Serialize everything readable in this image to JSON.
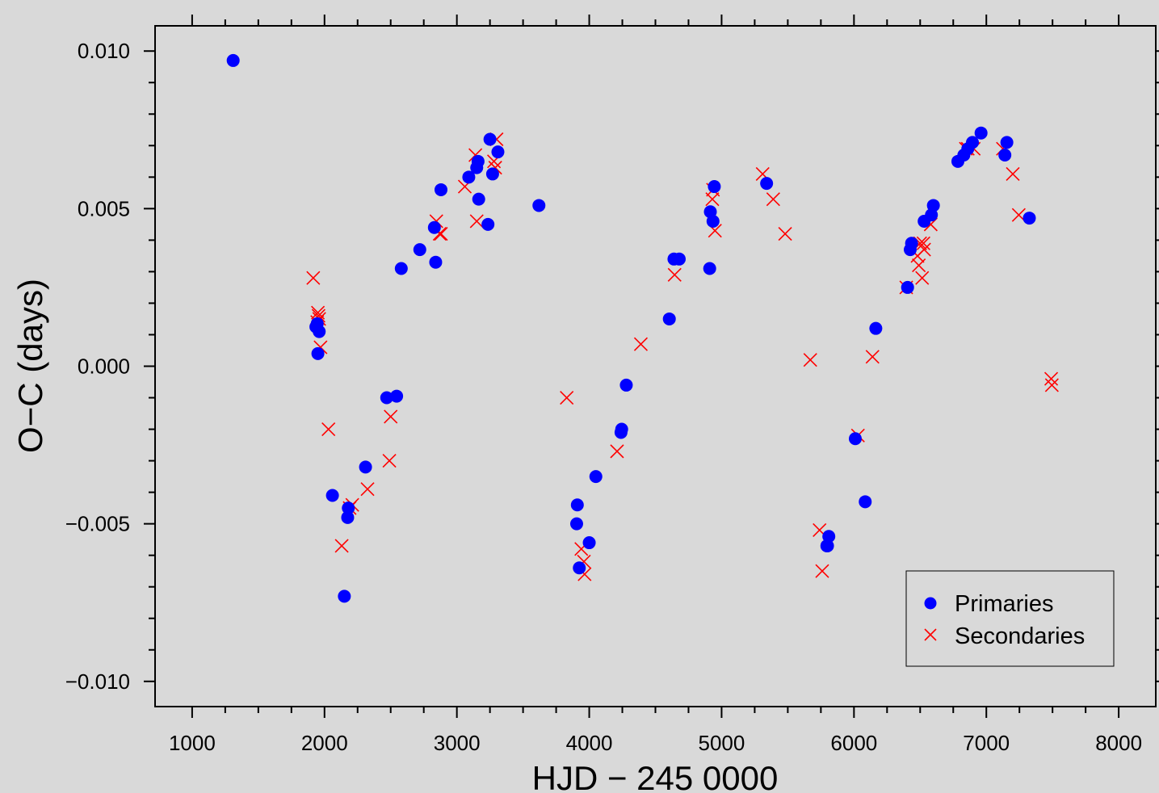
{
  "chart_data": {
    "type": "scatter",
    "xlabel": "HJD − 245 0000",
    "ylabel": "O−C (days)",
    "xlim": [
      720,
      8280
    ],
    "ylim": [
      -0.0108,
      0.0108
    ],
    "x_ticks": [
      1000,
      2000,
      3000,
      4000,
      5000,
      6000,
      7000,
      8000
    ],
    "x_tick_labels": [
      "1000",
      "2000",
      "3000",
      "4000",
      "5000",
      "6000",
      "7000",
      "8000"
    ],
    "y_ticks": [
      0.01,
      0.005,
      0.0,
      -0.005,
      -0.01
    ],
    "y_tick_labels": [
      "0.010",
      "0.005",
      "0.000",
      "−0.005",
      "−0.010"
    ],
    "grid": false,
    "legend_position": "bottom-right",
    "colors": {
      "primaries": "#0000ff",
      "secondaries": "#ff0000",
      "background": "#d9d9d9"
    },
    "series": [
      {
        "name": "Primaries",
        "marker": "circle",
        "points": [
          [
            1310,
            0.0097
          ],
          [
            1935,
            0.00125
          ],
          [
            1945,
            0.00135
          ],
          [
            1950,
            0.0004
          ],
          [
            1960,
            0.0011
          ],
          [
            2060,
            -0.0041
          ],
          [
            2150,
            -0.0073
          ],
          [
            2175,
            -0.0048
          ],
          [
            2180,
            -0.0045
          ],
          [
            2310,
            -0.0032
          ],
          [
            2470,
            -0.001
          ],
          [
            2545,
            -0.00095
          ],
          [
            2580,
            0.0031
          ],
          [
            2720,
            0.0037
          ],
          [
            2830,
            0.0044
          ],
          [
            2840,
            0.0033
          ],
          [
            2880,
            0.0056
          ],
          [
            3090,
            0.006
          ],
          [
            3150,
            0.0063
          ],
          [
            3160,
            0.0065
          ],
          [
            3165,
            0.0053
          ],
          [
            3235,
            0.0045
          ],
          [
            3250,
            0.0072
          ],
          [
            3270,
            0.0061
          ],
          [
            3310,
            0.0068
          ],
          [
            3620,
            0.0051
          ],
          [
            3905,
            -0.005
          ],
          [
            3910,
            -0.0044
          ],
          [
            3925,
            -0.0064
          ],
          [
            4000,
            -0.0056
          ],
          [
            4050,
            -0.0035
          ],
          [
            4240,
            -0.0021
          ],
          [
            4245,
            -0.002
          ],
          [
            4280,
            -0.0006
          ],
          [
            4605,
            0.0015
          ],
          [
            4640,
            0.0034
          ],
          [
            4680,
            0.0034
          ],
          [
            4910,
            0.0031
          ],
          [
            4915,
            0.0049
          ],
          [
            4935,
            0.0046
          ],
          [
            4945,
            0.0057
          ],
          [
            5340,
            0.0058
          ],
          [
            5795,
            -0.0057
          ],
          [
            5800,
            -0.0057
          ],
          [
            5810,
            -0.0054
          ],
          [
            6010,
            -0.0023
          ],
          [
            6085,
            -0.0043
          ],
          [
            6165,
            0.0012
          ],
          [
            6405,
            0.0025
          ],
          [
            6425,
            0.0037
          ],
          [
            6435,
            0.0039
          ],
          [
            6530,
            0.0046
          ],
          [
            6585,
            0.0048
          ],
          [
            6600,
            0.0051
          ],
          [
            6785,
            0.0065
          ],
          [
            6830,
            0.0067
          ],
          [
            6860,
            0.0069
          ],
          [
            6895,
            0.0071
          ],
          [
            6960,
            0.0074
          ],
          [
            7140,
            0.0067
          ],
          [
            7155,
            0.0071
          ],
          [
            7325,
            0.0047
          ]
        ]
      },
      {
        "name": "Secondaries",
        "marker": "cross",
        "points": [
          [
            1915,
            0.0028
          ],
          [
            1945,
            0.0014
          ],
          [
            1950,
            0.0017
          ],
          [
            1955,
            0.0016
          ],
          [
            1960,
            0.0015
          ],
          [
            1970,
            0.0006
          ],
          [
            2030,
            -0.002
          ],
          [
            2130,
            -0.0057
          ],
          [
            2190,
            -0.0045
          ],
          [
            2210,
            -0.0044
          ],
          [
            2325,
            -0.0039
          ],
          [
            2490,
            -0.003
          ],
          [
            2500,
            -0.0016
          ],
          [
            2845,
            0.0046
          ],
          [
            2870,
            0.0042
          ],
          [
            2880,
            0.0042
          ],
          [
            3060,
            0.0057
          ],
          [
            3140,
            0.0067
          ],
          [
            3150,
            0.0046
          ],
          [
            3280,
            0.0065
          ],
          [
            3290,
            0.0063
          ],
          [
            3300,
            0.0072
          ],
          [
            3830,
            -0.001
          ],
          [
            3940,
            -0.0058
          ],
          [
            3960,
            -0.0062
          ],
          [
            3965,
            -0.0066
          ],
          [
            4210,
            -0.0027
          ],
          [
            4390,
            0.0007
          ],
          [
            4645,
            0.0029
          ],
          [
            4930,
            0.0053
          ],
          [
            4935,
            0.0056
          ],
          [
            4950,
            0.0043
          ],
          [
            5310,
            0.0061
          ],
          [
            5390,
            0.0053
          ],
          [
            5480,
            0.0042
          ],
          [
            5670,
            0.0002
          ],
          [
            5740,
            -0.0052
          ],
          [
            5760,
            -0.0065
          ],
          [
            6030,
            -0.0022
          ],
          [
            6140,
            0.0003
          ],
          [
            6395,
            0.0025
          ],
          [
            6480,
            0.0035
          ],
          [
            6490,
            0.0032
          ],
          [
            6500,
            0.0039
          ],
          [
            6515,
            0.0028
          ],
          [
            6525,
            0.0039
          ],
          [
            6530,
            0.0037
          ],
          [
            6580,
            0.0045
          ],
          [
            6845,
            0.0069
          ],
          [
            6860,
            0.0069
          ],
          [
            6905,
            0.0069
          ],
          [
            7125,
            0.0069
          ],
          [
            7200,
            0.0061
          ],
          [
            7245,
            0.0048
          ],
          [
            7490,
            -0.0004
          ],
          [
            7495,
            -0.0006
          ]
        ]
      }
    ]
  }
}
